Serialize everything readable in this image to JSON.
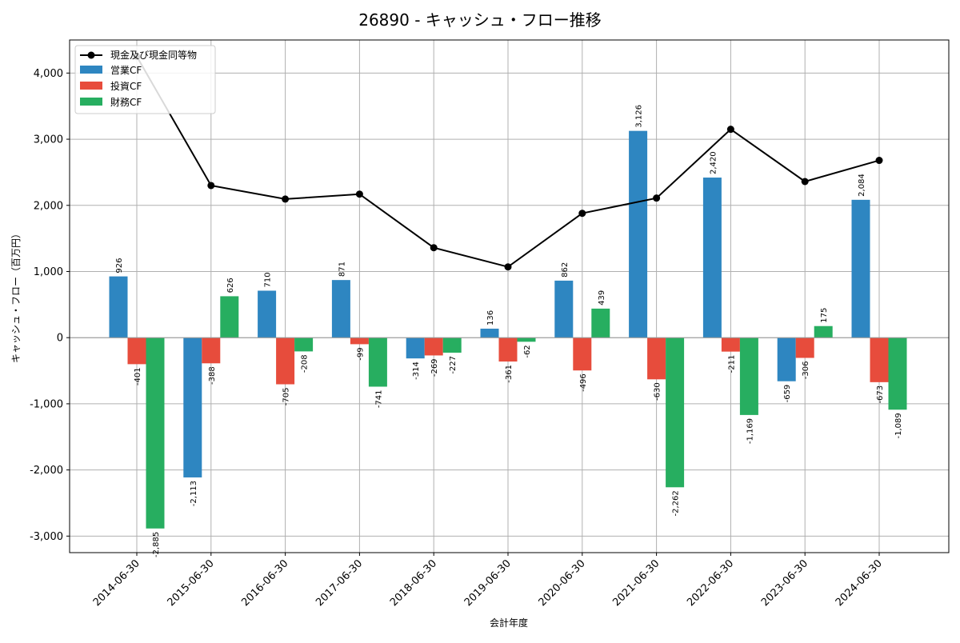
{
  "chart_data": {
    "type": "bar",
    "title": "26890 - キャッシュ・フロー推移",
    "xlabel": "会計年度",
    "ylabel": "キャッシュ・フロー（百万円）",
    "categories": [
      "2014-06-30",
      "2015-06-30",
      "2016-06-30",
      "2017-06-30",
      "2018-06-30",
      "2019-06-30",
      "2020-06-30",
      "2021-06-30",
      "2022-06-30",
      "2023-06-30",
      "2024-06-30"
    ],
    "ylim": [
      -3250,
      4500
    ],
    "yticks": [
      -3000,
      -2000,
      -1000,
      0,
      1000,
      2000,
      3000,
      4000
    ],
    "ytick_labels": [
      "-3,000",
      "-2,000",
      "-1,000",
      "0",
      "1,000",
      "2,000",
      "3,000",
      "4,000"
    ],
    "grid": true,
    "legend_position": "top-left",
    "series": [
      {
        "name": "営業CF",
        "type": "bar",
        "color": "#2e86c1",
        "values": [
          926,
          -2113,
          710,
          871,
          -314,
          136,
          862,
          3126,
          2420,
          -659,
          2084
        ],
        "labels": [
          "926",
          "-2,113",
          "710",
          "871",
          "-314",
          "136",
          "862",
          "3,126",
          "2,420",
          "-659",
          "2,084"
        ]
      },
      {
        "name": "投資CF",
        "type": "bar",
        "color": "#e74c3c",
        "values": [
          -401,
          -388,
          -705,
          -99,
          -269,
          -361,
          -496,
          -630,
          -211,
          -306,
          -673
        ],
        "labels": [
          "-401",
          "-388",
          "-705",
          "-99",
          "-269",
          "-361",
          "-496",
          "-630",
          "-211",
          "-306",
          "-673"
        ]
      },
      {
        "name": "財務CF",
        "type": "bar",
        "color": "#27ae60",
        "values": [
          -2885,
          626,
          -208,
          -741,
          -227,
          -62,
          439,
          -2262,
          -1169,
          175,
          -1089
        ],
        "labels": [
          "-2,885",
          "626",
          "-208",
          "-741",
          "-227",
          "-62",
          "439",
          "-2,262",
          "-1,169",
          "175",
          "-1,089"
        ]
      },
      {
        "name": "現金及び現金同等物",
        "type": "line",
        "color": "#000000",
        "values": [
          4250,
          2300,
          2095,
          2170,
          1360,
          1070,
          1880,
          2110,
          3150,
          2360,
          2680
        ]
      }
    ]
  }
}
